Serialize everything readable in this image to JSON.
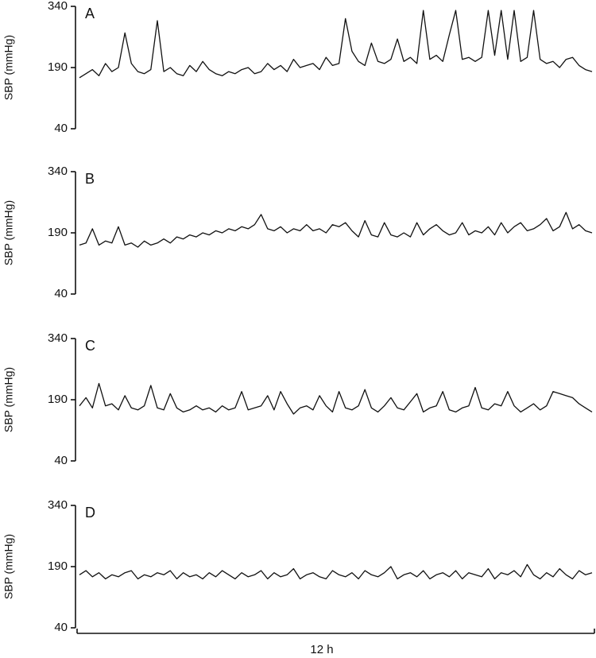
{
  "chart_data": [
    {
      "type": "line",
      "label": "A",
      "ylabel": "SBP (mmHg)",
      "ylim": [
        40,
        340
      ],
      "yticks": [
        40,
        190,
        340
      ],
      "color": "#111111",
      "values": [
        165,
        175,
        185,
        170,
        200,
        180,
        190,
        275,
        200,
        180,
        175,
        185,
        305,
        180,
        190,
        175,
        170,
        195,
        180,
        205,
        185,
        175,
        170,
        180,
        175,
        185,
        190,
        175,
        180,
        200,
        185,
        195,
        180,
        210,
        190,
        195,
        200,
        185,
        215,
        195,
        200,
        310,
        230,
        205,
        195,
        250,
        205,
        200,
        210,
        260,
        205,
        215,
        200,
        330,
        210,
        220,
        205,
        270,
        330,
        210,
        215,
        205,
        215,
        330,
        220,
        330,
        210,
        330,
        205,
        215,
        330,
        210,
        200,
        205,
        190,
        210,
        215,
        195,
        185,
        180
      ]
    },
    {
      "type": "line",
      "label": "B",
      "ylabel": "SBP (mmHg)",
      "ylim": [
        40,
        340
      ],
      "yticks": [
        40,
        190,
        340
      ],
      "color": "#111111",
      "values": [
        160,
        165,
        200,
        160,
        170,
        165,
        205,
        160,
        165,
        155,
        170,
        160,
        165,
        175,
        165,
        180,
        175,
        185,
        180,
        190,
        185,
        195,
        190,
        200,
        195,
        205,
        200,
        210,
        235,
        200,
        195,
        205,
        190,
        200,
        195,
        210,
        195,
        200,
        190,
        210,
        205,
        215,
        195,
        180,
        220,
        185,
        180,
        215,
        185,
        180,
        190,
        180,
        215,
        185,
        200,
        210,
        195,
        185,
        190,
        215,
        185,
        195,
        190,
        205,
        185,
        215,
        190,
        205,
        215,
        195,
        200,
        210,
        225,
        195,
        205,
        240,
        200,
        210,
        195,
        190
      ]
    },
    {
      "type": "line",
      "label": "C",
      "ylabel": "SBP (mmHg)",
      "ylim": [
        40,
        340
      ],
      "yticks": [
        40,
        190,
        340
      ],
      "color": "#111111",
      "values": [
        175,
        195,
        170,
        230,
        175,
        180,
        165,
        200,
        170,
        165,
        175,
        225,
        170,
        165,
        205,
        170,
        160,
        165,
        175,
        165,
        170,
        160,
        175,
        165,
        170,
        210,
        165,
        170,
        175,
        200,
        165,
        210,
        180,
        155,
        170,
        175,
        165,
        200,
        175,
        160,
        210,
        170,
        165,
        175,
        215,
        170,
        160,
        175,
        195,
        170,
        165,
        185,
        205,
        160,
        170,
        175,
        210,
        165,
        160,
        170,
        175,
        220,
        170,
        165,
        180,
        175,
        210,
        175,
        160,
        170,
        180,
        165,
        175,
        210,
        205,
        200,
        195,
        180,
        170,
        160
      ]
    },
    {
      "type": "line",
      "label": "D",
      "ylabel": "SBP (mmHg)",
      "xlabel": "12 h",
      "ylim": [
        40,
        340
      ],
      "yticks": [
        40,
        190,
        340
      ],
      "color": "#111111",
      "values": [
        170,
        180,
        165,
        175,
        160,
        170,
        165,
        175,
        180,
        160,
        170,
        165,
        175,
        170,
        180,
        160,
        175,
        165,
        170,
        160,
        175,
        165,
        180,
        170,
        160,
        175,
        165,
        170,
        180,
        160,
        175,
        165,
        170,
        185,
        160,
        170,
        175,
        165,
        160,
        180,
        170,
        165,
        175,
        160,
        180,
        170,
        165,
        175,
        190,
        160,
        170,
        175,
        165,
        180,
        160,
        170,
        175,
        165,
        180,
        160,
        175,
        170,
        165,
        185,
        160,
        175,
        170,
        180,
        165,
        195,
        170,
        160,
        175,
        165,
        185,
        170,
        160,
        180,
        170,
        175
      ]
    }
  ]
}
